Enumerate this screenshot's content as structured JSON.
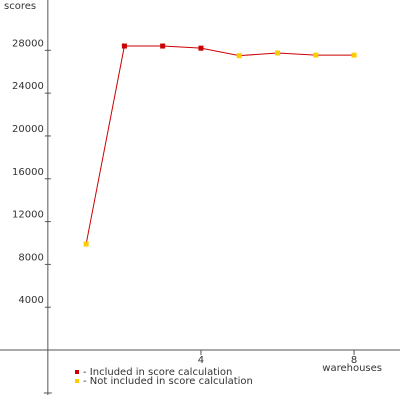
{
  "chart_data": {
    "type": "line",
    "y_label": "scores",
    "x_label": "warehouses",
    "x": [
      1,
      2,
      3,
      4,
      5,
      6,
      7,
      8
    ],
    "values": [
      9900,
      28400,
      28400,
      28200,
      27500,
      27750,
      27550,
      27550
    ],
    "line_color": "#cc0000",
    "point_colors": [
      "#ffcc00",
      "#cc0000",
      "#cc0000",
      "#cc0000",
      "#ffcc00",
      "#ffcc00",
      "#ffcc00",
      "#ffcc00"
    ],
    "legend": [
      {
        "label": "- Included in score calculation",
        "color": "#cc0000"
      },
      {
        "label": "- Not included in score calculation",
        "color": "#ffcc00"
      }
    ],
    "xlim": [
      -1.25,
      9.2
    ],
    "ylim": [
      -4200,
      32700
    ],
    "xticks": [
      4,
      8
    ],
    "yticks": [
      4000,
      8000,
      12000,
      16000,
      20000,
      24000,
      28000
    ]
  }
}
